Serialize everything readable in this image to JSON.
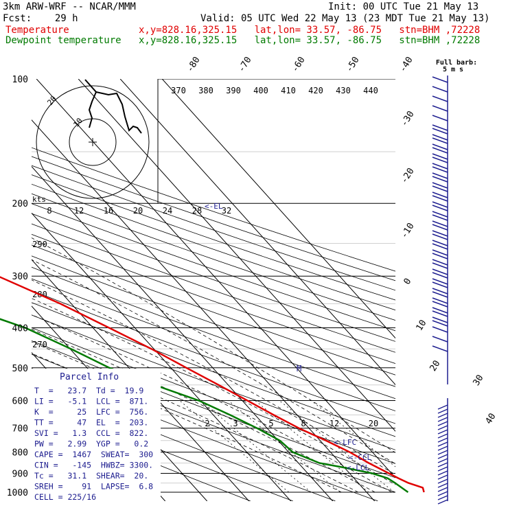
{
  "header": {
    "model": "3km ARW-WRF -- NCAR/MMM",
    "init": "Init: 00 UTC Tue 21 May 13",
    "fcst": "Fcst:    29 h",
    "valid": "Valid: 05 UTC Wed 22 May 13 (23 MDT Tue 21 May 13)",
    "temp_label": "Temperature",
    "dew_label": "Dewpoint temperature",
    "temp_loc": "x,y=828.16,325.15   lat,lon= 33.57, -86.75   stn=BHM ,72228",
    "dew_loc": "x,y=828.16,325.15   lat,lon= 33.57, -86.75   stn=BHM ,72228"
  },
  "colors": {
    "temperature": "#e00000",
    "dewpoint": "#007a00",
    "parcel_box": "#1d1d8f",
    "barbs": "#1d1d8f"
  },
  "chart_data": {
    "type": "line",
    "subtype": "skew-T log-p",
    "pressure_ticks": [
      "100",
      "200",
      "300",
      "400",
      "500",
      "600",
      "700",
      "800",
      "900",
      "1000"
    ],
    "isotherm_labels": [
      "-80",
      "-70",
      "-60",
      "-50",
      "-40",
      "-30",
      "-20",
      "-10",
      "0",
      "10",
      "20",
      "30",
      "40"
    ],
    "theta_labels": [
      "370",
      "380",
      "390",
      "400",
      "410",
      "420",
      "430",
      "440"
    ],
    "mixing_ratio_labels": [
      "2",
      "3",
      "5",
      "8",
      "12",
      "20"
    ],
    "upper_mixing_labels": [
      "8",
      "12",
      "16",
      "20",
      "24",
      "28",
      "32"
    ],
    "left_theta_labels": [
      "290",
      "280",
      "270"
    ],
    "series": [
      {
        "name": "Temperature",
        "points": [
          {
            "p": 1000,
            "t": 23.7
          },
          {
            "p": 975,
            "t": 24.4
          },
          {
            "p": 950,
            "t": 22.0
          },
          {
            "p": 925,
            "t": 20.6
          },
          {
            "p": 900,
            "t": 19.4
          },
          {
            "p": 850,
            "t": 16.8
          },
          {
            "p": 800,
            "t": 14.6
          },
          {
            "p": 750,
            "t": 11.4
          },
          {
            "p": 700,
            "t": 7.6
          },
          {
            "p": 650,
            "t": 4.4
          },
          {
            "p": 600,
            "t": 1.2
          },
          {
            "p": 550,
            "t": -2.3
          },
          {
            "p": 500,
            "t": -6.3
          },
          {
            "p": 450,
            "t": -10.6
          },
          {
            "p": 400,
            "t": -16.2
          },
          {
            "p": 350,
            "t": -22.6
          },
          {
            "p": 300,
            "t": -31.6
          },
          {
            "p": 250,
            "t": -41.4
          },
          {
            "p": 200,
            "t": -52.4
          },
          {
            "p": 180,
            "t": -57.0
          },
          {
            "p": 160,
            "t": -59.5
          },
          {
            "p": 150,
            "t": -58.8
          },
          {
            "p": 140,
            "t": -60.0
          },
          {
            "p": 125,
            "t": -63.6
          },
          {
            "p": 110,
            "t": -66.3
          },
          {
            "p": 100,
            "t": -68.0
          }
        ]
      },
      {
        "name": "Dewpoint temperature",
        "points": [
          {
            "p": 1000,
            "t": 19.9
          },
          {
            "p": 950,
            "t": 18.8
          },
          {
            "p": 925,
            "t": 18.0
          },
          {
            "p": 900,
            "t": 15.4
          },
          {
            "p": 870,
            "t": 9.6
          },
          {
            "p": 850,
            "t": 5.0
          },
          {
            "p": 800,
            "t": 1.0
          },
          {
            "p": 750,
            "t": 0.4
          },
          {
            "p": 700,
            "t": -2.4
          },
          {
            "p": 650,
            "t": -6.0
          },
          {
            "p": 600,
            "t": -10.4
          },
          {
            "p": 550,
            "t": -17.6
          },
          {
            "p": 500,
            "t": -24.7
          },
          {
            "p": 450,
            "t": -29.8
          },
          {
            "p": 400,
            "t": -36.2
          },
          {
            "p": 350,
            "t": -47.6
          },
          {
            "p": 330,
            "t": -46.6
          },
          {
            "p": 300,
            "t": -47.5
          },
          {
            "p": 250,
            "t": -55.0
          },
          {
            "p": 200,
            "t": -66.7
          },
          {
            "p": 150,
            "t": -79.0
          },
          {
            "p": 100,
            "t": -82.2
          }
        ]
      }
    ],
    "parcel_levels": [
      {
        "label": "<-LFC",
        "p": 756
      },
      {
        "label": "<-CCL",
        "p": 822
      },
      {
        "label": "<-LCL",
        "p": 871
      },
      {
        "label": "<-EL",
        "p": 203
      }
    ],
    "hodograph": {
      "ring_labels": [
        "10",
        "20"
      ],
      "units": "kts"
    },
    "barb_key": {
      "title": "Full barb:",
      "value": "5 m s"
    },
    "freezing_marker": "M"
  },
  "parcel": {
    "title": "Parcel Info",
    "rows": [
      "T  =   23.7  Td =  19.9",
      "LI =   -5.1  LCL =  871.",
      "K  =     25  LFC =  756.",
      "TT =     47  EL  =  203.",
      "SVI =   1.3  CCL =  822.",
      "PW =   2.99  YGP =   0.2",
      "CAPE =  1467  SWEAT=  300",
      "CIN =   -145  HWBZ= 3300.",
      "Tc =   31.1  SHEAR=  20.",
      "SREH =    91  LAPSE=  6.8",
      "CELL = 225/16"
    ]
  }
}
